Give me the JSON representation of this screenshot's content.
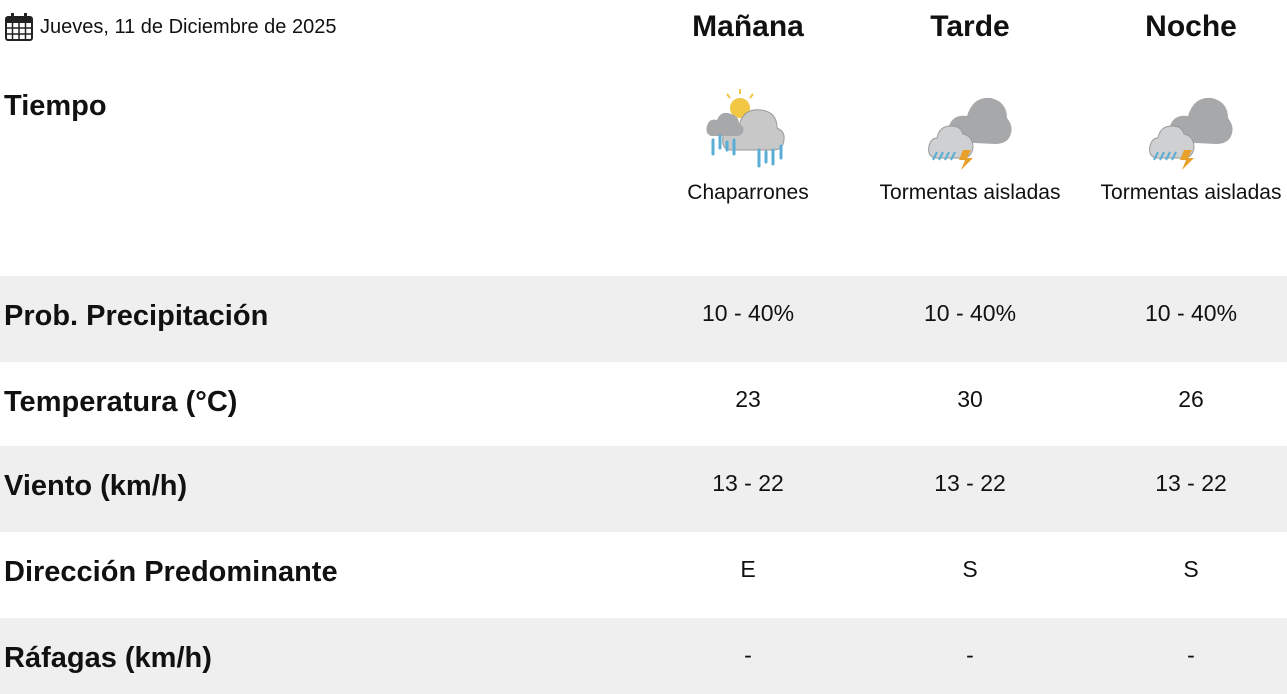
{
  "date": {
    "icon": "calendar-icon",
    "text": "Jueves, 11 de Diciembre de 2025"
  },
  "columns": [
    {
      "title": "Mañana",
      "icon": "showers-partly-sunny-icon",
      "description": "Chaparrones"
    },
    {
      "title": "Tarde",
      "icon": "isolated-thunderstorms-icon",
      "description": "Tormentas aisladas"
    },
    {
      "title": "Noche",
      "icon": "isolated-thunderstorms-icon",
      "description": "Tormentas aisladas"
    }
  ],
  "tiempo_label": "Tiempo",
  "rows": [
    {
      "label": "Prob. Precipitación",
      "values": [
        "10 - 40%",
        "10 - 40%",
        "10 - 40%"
      ]
    },
    {
      "label": "Temperatura (°C)",
      "values": [
        "23",
        "30",
        "26"
      ]
    },
    {
      "label": "Viento (km/h)",
      "values": [
        "13 - 22",
        "13 - 22",
        "13 - 22"
      ]
    },
    {
      "label": "Dirección Predominante",
      "values": [
        "E",
        "S",
        "S"
      ]
    },
    {
      "label": "Ráfagas (km/h)",
      "values": [
        "-",
        "-",
        "-"
      ]
    }
  ],
  "colors": {
    "row_stripe": "#efefef",
    "rain": "#5aaed4",
    "bolt": "#e8a02a",
    "sun": "#f2c744",
    "cloud_light": "#c8c8c8",
    "cloud_dark": "#a7a8aa"
  }
}
